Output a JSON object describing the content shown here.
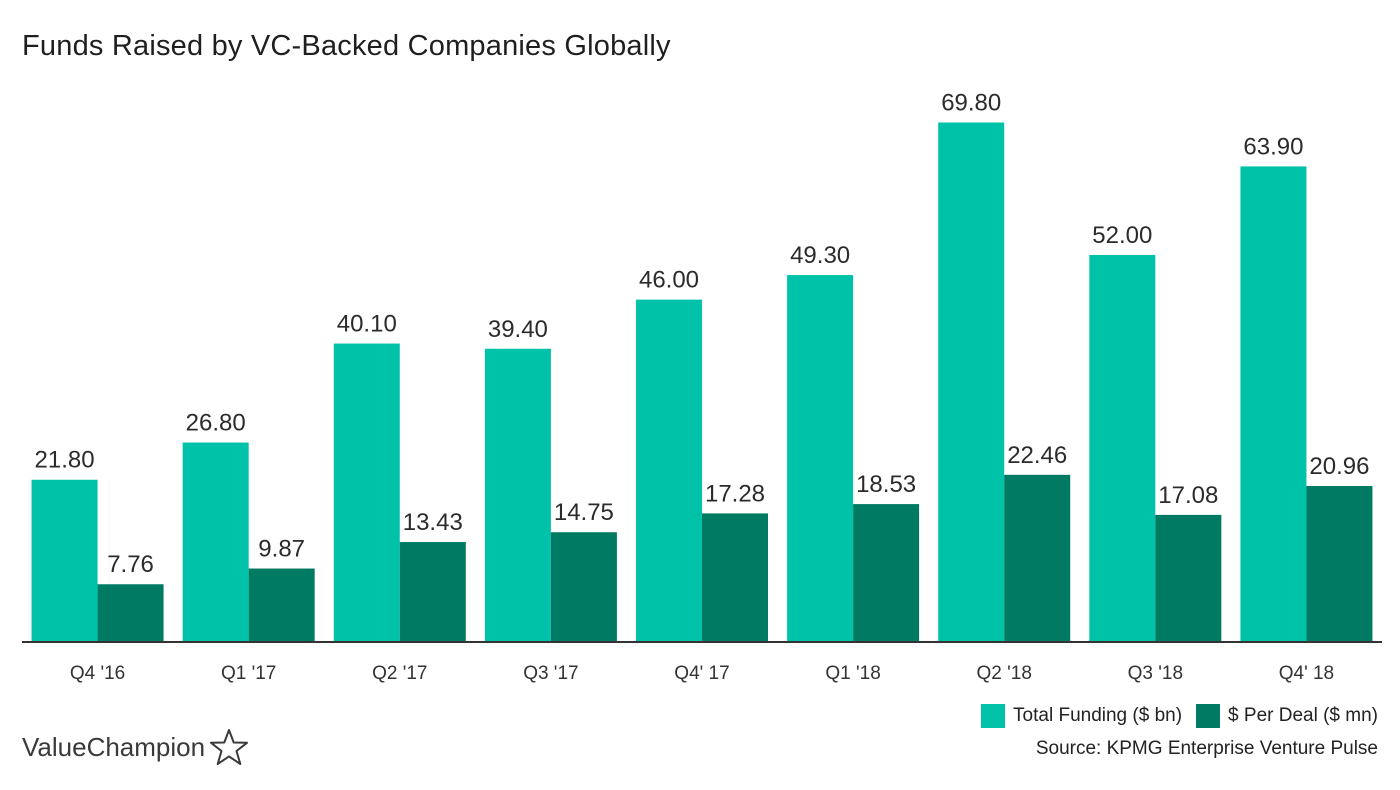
{
  "title": "Funds Raised by VC-Backed Companies Globally",
  "colors": {
    "total": "#00c2a8",
    "per_deal": "#007a63",
    "axis": "#333333"
  },
  "legend": {
    "total_label": "Total Funding ($ bn)",
    "per_deal_label": "$ Per Deal ($ mn)"
  },
  "source": "Source: KPMG Enterprise Venture Pulse",
  "logo": {
    "text": "ValueChampion",
    "icon": "star-outline-icon"
  },
  "chart_data": {
    "type": "bar",
    "title": "Funds Raised by VC-Backed Companies Globally",
    "categories": [
      "Q4 '16",
      "Q1 '17",
      "Q2 '17",
      "Q3 '17",
      "Q4' 17",
      "Q1 '18",
      "Q2 '18",
      "Q3 '18",
      "Q4' 18"
    ],
    "series": [
      {
        "name": "Total Funding ($ bn)",
        "values": [
          21.8,
          26.8,
          40.1,
          39.4,
          46.0,
          49.3,
          69.8,
          52.0,
          63.9
        ],
        "labels": [
          "21.80",
          "26.80",
          "40.10",
          "39.40",
          "46.00",
          "49.30",
          "69.80",
          "52.00",
          "63.90"
        ]
      },
      {
        "name": "$ Per Deal ($ mn)",
        "values": [
          7.76,
          9.87,
          13.43,
          14.75,
          17.28,
          18.53,
          22.46,
          17.08,
          20.96
        ],
        "labels": [
          "7.76",
          "9.87",
          "13.43",
          "14.75",
          "17.28",
          "18.53",
          "22.46",
          "17.08",
          "20.96"
        ]
      }
    ],
    "xlabel": "",
    "ylabel": "",
    "ylim": [
      0,
      70
    ],
    "grid": false,
    "legend_position": "bottom-right"
  }
}
